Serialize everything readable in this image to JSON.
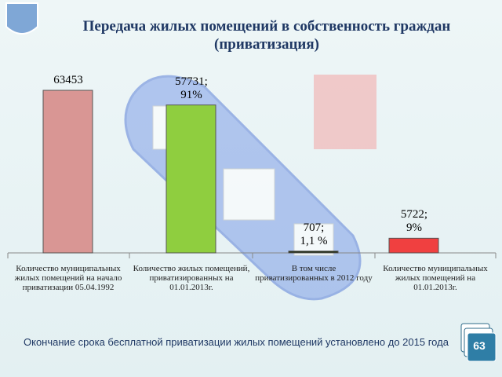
{
  "chart_data": {
    "type": "bar",
    "title": "Передача жилых помещений в собственность граждан\n(приватизация)",
    "categories": [
      "Количество муниципальных\nжилых помещений на начало\nприватизации 05.04.1992",
      "Количество жилых помещений,\nприватизированных на\n01.01.2013г.",
      "В том числе\nприватизированных в 2012 году",
      "Количество муниципальных\nжилых помещений на\n01.01.2013г."
    ],
    "values": [
      63453,
      57731,
      707,
      5722
    ],
    "value_labels": [
      "63453",
      "57731;\n91%",
      "707;\n1,1 %",
      "5722;\n9%"
    ],
    "colors": [
      "#d99694",
      "#8fce3f",
      "#1e2a10",
      "#f04040"
    ]
  },
  "footer": {
    "note": "Окончание срока бесплатной приватизации жилых помещений установлено до 2015 года",
    "slide_number": "63"
  }
}
